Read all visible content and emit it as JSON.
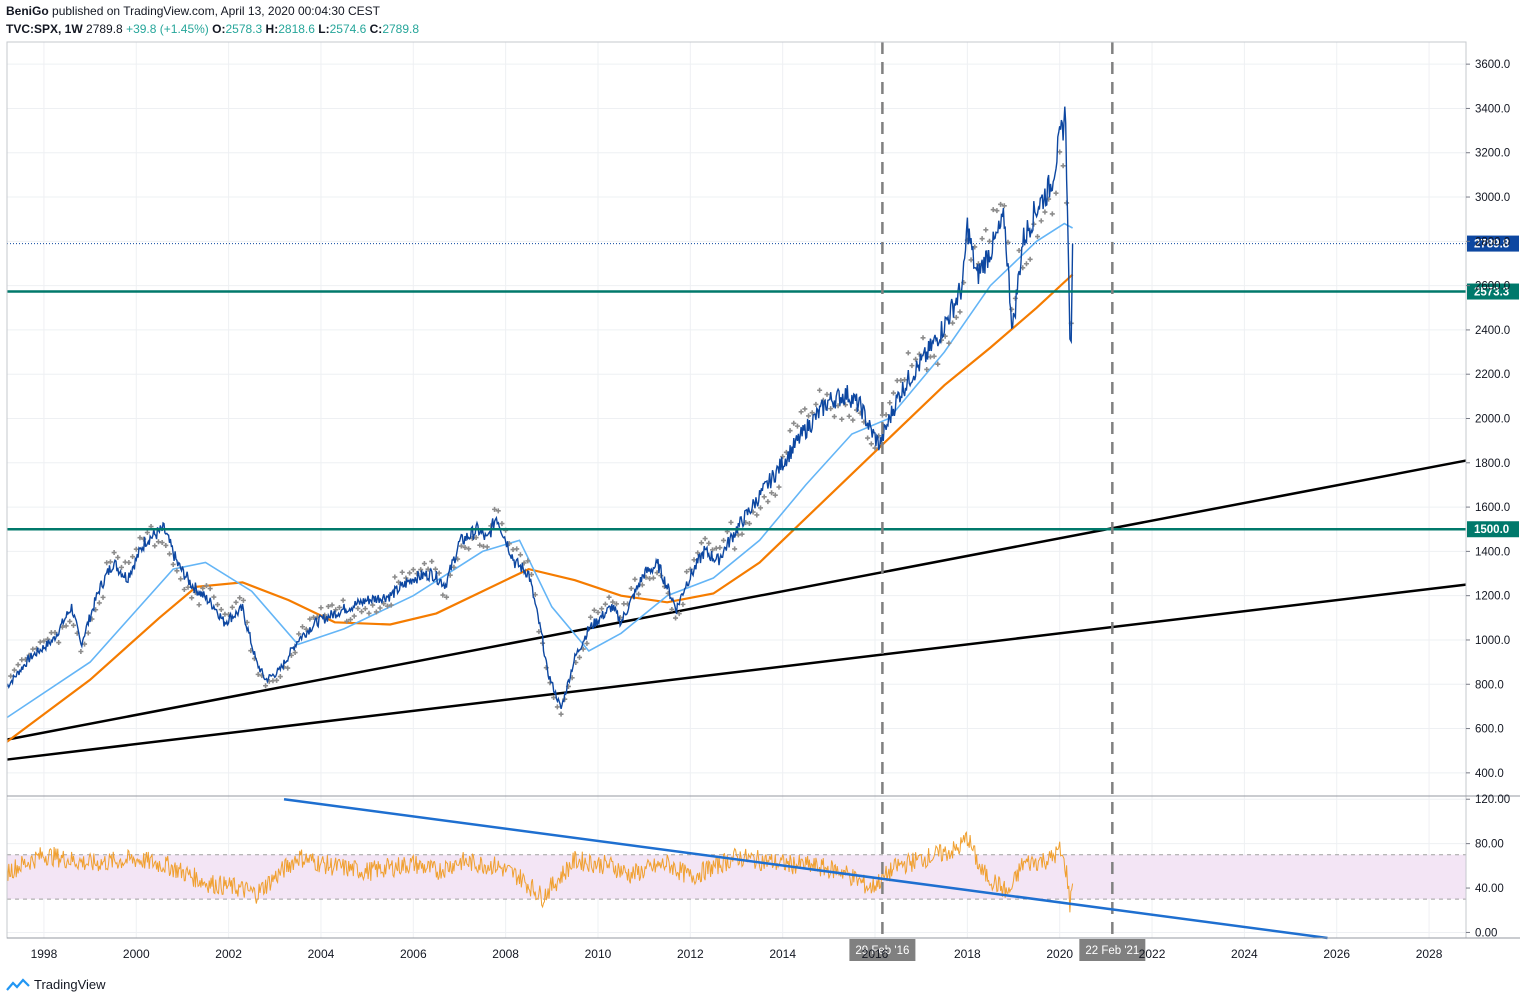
{
  "header": {
    "author": "BeniGo",
    "published_text": "published on TradingView.com, April 13, 2020 00:04:30 CEST",
    "symbol": "TVC:SPX, 1W",
    "last": "2789.8",
    "change": "+39.8 (+1.45%)",
    "o_label": "O:",
    "o": "2578.3",
    "h_label": "H:",
    "h": "2818.6",
    "l_label": "L:",
    "l": "2574.6",
    "c_label": "C:",
    "c": "2789.8"
  },
  "footer": {
    "brand": "TradingView"
  },
  "colors": {
    "price": "#0d47a1",
    "ma_fast": "#64b5f6",
    "ma_slow": "#f57c00",
    "sar": "#8c8c8c",
    "level": "#00796b",
    "rsi": "#f0a030",
    "rsi_band": "#f3e5f5",
    "rsi_trend": "#1e6fd0",
    "grid": "#eef0f3"
  },
  "chart_data": [
    {
      "type": "line",
      "symbol": "TVC:SPX",
      "interval": "1W",
      "y_scale": "linear",
      "ylim": [
        300,
        3700
      ],
      "xlim": [
        1997.2,
        2028.8
      ],
      "x_ticks": [
        "1998",
        "2000",
        "2002",
        "2004",
        "2006",
        "2008",
        "2010",
        "2012",
        "2014",
        "2016",
        "2018",
        "2020",
        "2022",
        "2024",
        "2026",
        "2028"
      ],
      "x_ticks_values": [
        1998,
        2000,
        2002,
        2004,
        2006,
        2008,
        2010,
        2012,
        2014,
        2016,
        2018,
        2020,
        2022,
        2024,
        2026,
        2028
      ],
      "y_ticks": [
        400,
        600,
        800,
        1000,
        1200,
        1400,
        1600,
        1800,
        2000,
        2200,
        2400,
        2600,
        2800,
        3000,
        3200,
        3400,
        3600
      ],
      "y_tick_labels": [
        "400.0",
        "600.0",
        "800.0",
        "1000.0",
        "1200.0",
        "1400.0",
        "1600.0",
        "1800.0",
        "2000.0",
        "2200.0",
        "2400.0",
        "2600.0",
        "2800.0",
        "3000.0",
        "3200.0",
        "3400.0",
        "3600.0"
      ],
      "grid": true,
      "series": [
        {
          "role": "price",
          "x": [
            1997.2,
            1997.7,
            1998.2,
            1998.6,
            1998.8,
            1999.2,
            1999.5,
            1999.8,
            2000.2,
            2000.6,
            2000.9,
            2001.2,
            2001.7,
            2001.9,
            2002.3,
            2002.6,
            2002.8,
            2003.1,
            2003.5,
            2003.9,
            2004.5,
            2005.0,
            2005.5,
            2006.0,
            2006.4,
            2006.7,
            2007.0,
            2007.4,
            2007.6,
            2007.8,
            2008.2,
            2008.5,
            2008.8,
            2008.9,
            2009.2,
            2009.5,
            2009.8,
            2010.3,
            2010.5,
            2011.0,
            2011.3,
            2011.7,
            2011.9,
            2012.3,
            2012.6,
            2013.0,
            2013.5,
            2014.0,
            2014.5,
            2015.0,
            2015.4,
            2015.7,
            2015.9,
            2016.1,
            2016.5,
            2016.8,
            2017.1,
            2017.5,
            2017.9,
            2018.0,
            2018.2,
            2018.6,
            2018.8,
            2018.98,
            2019.2,
            2019.5,
            2019.8,
            2020.0,
            2020.13,
            2020.17,
            2020.22,
            2020.25,
            2020.28
          ],
          "y": [
            790,
            920,
            1000,
            1150,
            980,
            1230,
            1350,
            1280,
            1450,
            1500,
            1340,
            1250,
            1150,
            1080,
            1140,
            900,
            820,
            860,
            1000,
            1080,
            1140,
            1180,
            1200,
            1280,
            1300,
            1250,
            1440,
            1500,
            1450,
            1560,
            1350,
            1300,
            1000,
            860,
            690,
            920,
            1050,
            1150,
            1080,
            1300,
            1340,
            1140,
            1250,
            1400,
            1360,
            1500,
            1650,
            1800,
            1950,
            2080,
            2110,
            2050,
            1950,
            1880,
            2100,
            2200,
            2280,
            2420,
            2600,
            2870,
            2640,
            2800,
            2900,
            2400,
            2800,
            2950,
            3050,
            3250,
            3380,
            2900,
            2400,
            2300,
            2789.8
          ]
        },
        {
          "role": "moving_average_fast",
          "x": [
            1997.2,
            1999.0,
            2000.8,
            2001.5,
            2002.5,
            2003.5,
            2004.5,
            2006.0,
            2007.5,
            2008.3,
            2009.0,
            2009.8,
            2010.5,
            2011.5,
            2012.5,
            2013.5,
            2014.5,
            2015.5,
            2016.3,
            2017.5,
            2018.5,
            2019.5,
            2020.1,
            2020.28
          ],
          "y": [
            650,
            900,
            1320,
            1350,
            1220,
            980,
            1050,
            1200,
            1400,
            1450,
            1150,
            950,
            1030,
            1200,
            1280,
            1450,
            1700,
            1930,
            2000,
            2300,
            2600,
            2800,
            2880,
            2860
          ]
        },
        {
          "role": "moving_average_slow",
          "x": [
            1997.2,
            1999.0,
            2000.5,
            2001.3,
            2002.3,
            2003.3,
            2004.3,
            2005.5,
            2006.5,
            2007.5,
            2008.5,
            2009.5,
            2010.5,
            2011.5,
            2012.5,
            2013.5,
            2014.5,
            2015.5,
            2016.5,
            2017.5,
            2018.5,
            2019.5,
            2020.28
          ],
          "y": [
            540,
            820,
            1100,
            1240,
            1260,
            1180,
            1080,
            1070,
            1120,
            1220,
            1320,
            1270,
            1200,
            1170,
            1210,
            1350,
            1550,
            1750,
            1950,
            2150,
            2320,
            2500,
            2650
          ]
        }
      ],
      "trendlines": [
        {
          "from": [
            1997.2,
            550
          ],
          "to": [
            2028.8,
            1810
          ]
        },
        {
          "from": [
            1997.2,
            460
          ],
          "to": [
            2028.8,
            1250
          ]
        }
      ],
      "horizontal_levels": [
        {
          "value": 2573.3,
          "label": "2573.3"
        },
        {
          "value": 1500.0,
          "label": "1500.0"
        }
      ],
      "last_price": {
        "value": 2789.8,
        "label": "2789.8"
      },
      "vertical_markers": [
        {
          "x": 2016.16,
          "label": "29 Feb '16"
        },
        {
          "x": 2021.14,
          "label": "22 Feb '21"
        }
      ]
    },
    {
      "type": "line",
      "role": "rsi",
      "ylim": [
        -5,
        122
      ],
      "y_ticks": [
        0,
        40,
        80,
        120
      ],
      "y_tick_labels": [
        "0.00",
        "40.00",
        "80.00",
        "120.00"
      ],
      "band": [
        30,
        70
      ],
      "series": [
        {
          "x": [
            1997.2,
            1998.0,
            1999.0,
            2000.0,
            2000.7,
            2001.5,
            2002.2,
            2002.6,
            2003.5,
            2004.2,
            2005.0,
            2006.0,
            2006.5,
            2007.0,
            2007.8,
            2008.3,
            2008.8,
            2009.5,
            2010.3,
            2010.7,
            2011.5,
            2012.0,
            2013.0,
            2014.0,
            2014.6,
            2015.3,
            2015.9,
            2016.5,
            2017.0,
            2017.8,
            2018.0,
            2018.3,
            2018.9,
            2019.2,
            2019.8,
            2020.0,
            2020.15,
            2020.22,
            2020.28
          ],
          "y": [
            55,
            70,
            62,
            66,
            60,
            45,
            40,
            35,
            68,
            60,
            55,
            62,
            55,
            64,
            60,
            50,
            32,
            65,
            60,
            52,
            62,
            50,
            68,
            62,
            60,
            55,
            40,
            60,
            66,
            75,
            86,
            55,
            35,
            62,
            66,
            74,
            55,
            25,
            44
          ]
        }
      ],
      "trendline": {
        "from": [
          2003.2,
          120
        ],
        "to": [
          2025.8,
          -5
        ]
      }
    }
  ]
}
